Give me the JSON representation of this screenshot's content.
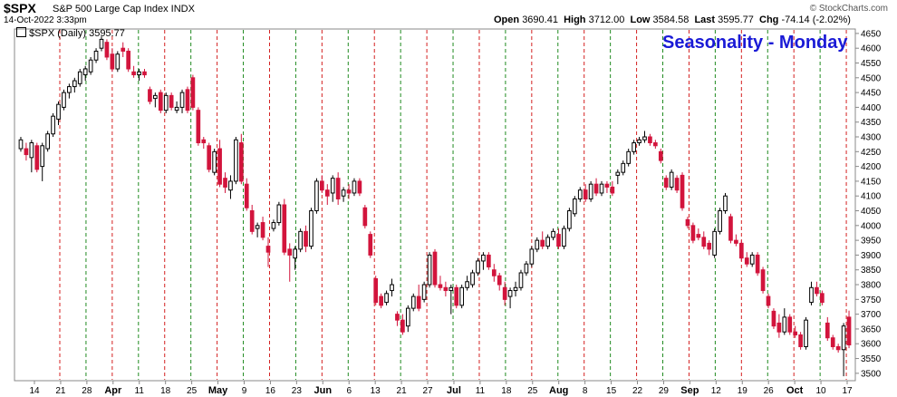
{
  "header": {
    "symbol": "$SPX",
    "description": "S&P 500 Large Cap Index  INDX",
    "timestamp": "14-Oct-2022 3:33pm",
    "credit": "© StockCharts.com",
    "open_label": "Open",
    "open": "3690.41",
    "high_label": "High",
    "high": "3712.00",
    "low_label": "Low",
    "low": "3584.58",
    "last_label": "Last",
    "last": "3595.77",
    "chg_label": "Chg",
    "chg": "-74.14 (-2.02%)",
    "legend": "$SPX (Daily) 3595.77"
  },
  "colors": {
    "up": "#000000",
    "down": "#d2143c",
    "monday_line": "#d42020",
    "other_line": "#1f8a1f",
    "title": "#1a1ad6"
  },
  "chart_data": {
    "type": "candlestick",
    "title": "Seasonality - Monday",
    "ylim": [
      3475,
      4665
    ],
    "y_ticks": [
      3500,
      3550,
      3600,
      3650,
      3700,
      3750,
      3800,
      3850,
      3900,
      3950,
      4000,
      4050,
      4100,
      4150,
      4200,
      4250,
      4300,
      4350,
      4400,
      4450,
      4500,
      4550,
      4600,
      4650
    ],
    "x_tick_labels": [
      "14",
      "21",
      "28",
      "Apr",
      "11",
      "18",
      "25",
      "May",
      "9",
      "16",
      "23",
      "Jun",
      "6",
      "13",
      "21",
      "27",
      "Jul",
      "11",
      "18",
      "25",
      "Aug",
      "8",
      "15",
      "22",
      "29",
      "Sep",
      "12",
      "19",
      "26",
      "Oct",
      "10",
      "17"
    ],
    "grid": "vertical dashed lines on week starts, red on Mondays, green otherwise",
    "candles": [
      {
        "o": 4260,
        "h": 4300,
        "l": 4250,
        "c": 4290
      },
      {
        "o": 4260,
        "h": 4280,
        "l": 4220,
        "c": 4240
      },
      {
        "o": 4230,
        "h": 4290,
        "l": 4180,
        "c": 4280
      },
      {
        "o": 4270,
        "h": 4280,
        "l": 4180,
        "c": 4190
      },
      {
        "o": 4200,
        "h": 4280,
        "l": 4150,
        "c": 4270
      },
      {
        "o": 4260,
        "h": 4320,
        "l": 4250,
        "c": 4310
      },
      {
        "o": 4310,
        "h": 4380,
        "l": 4300,
        "c": 4370
      },
      {
        "o": 4360,
        "h": 4420,
        "l": 4340,
        "c": 4410
      },
      {
        "o": 4400,
        "h": 4460,
        "l": 4390,
        "c": 4450
      },
      {
        "o": 4450,
        "h": 4480,
        "l": 4430,
        "c": 4470
      },
      {
        "o": 4470,
        "h": 4500,
        "l": 4450,
        "c": 4490
      },
      {
        "o": 4480,
        "h": 4530,
        "l": 4470,
        "c": 4520
      },
      {
        "o": 4510,
        "h": 4540,
        "l": 4490,
        "c": 4530
      },
      {
        "o": 4520,
        "h": 4570,
        "l": 4510,
        "c": 4560
      },
      {
        "o": 4560,
        "h": 4600,
        "l": 4550,
        "c": 4590
      },
      {
        "o": 4600,
        "h": 4640,
        "l": 4590,
        "c": 4630
      },
      {
        "o": 4620,
        "h": 4630,
        "l": 4560,
        "c": 4570
      },
      {
        "o": 4580,
        "h": 4600,
        "l": 4520,
        "c": 4530
      },
      {
        "o": 4530,
        "h": 4590,
        "l": 4520,
        "c": 4580
      },
      {
        "o": 4600,
        "h": 4620,
        "l": 4570,
        "c": 4590
      },
      {
        "o": 4590,
        "h": 4600,
        "l": 4520,
        "c": 4530
      },
      {
        "o": 4520,
        "h": 4540,
        "l": 4500,
        "c": 4510
      },
      {
        "o": 4510,
        "h": 4530,
        "l": 4490,
        "c": 4520
      },
      {
        "o": 4520,
        "h": 4530,
        "l": 4500,
        "c": 4510
      },
      {
        "o": 4460,
        "h": 4470,
        "l": 4410,
        "c": 4420
      },
      {
        "o": 4430,
        "h": 4450,
        "l": 4400,
        "c": 4440
      },
      {
        "o": 4450,
        "h": 4460,
        "l": 4380,
        "c": 4390
      },
      {
        "o": 4390,
        "h": 4450,
        "l": 4380,
        "c": 4440
      },
      {
        "o": 4440,
        "h": 4450,
        "l": 4390,
        "c": 4400
      },
      {
        "o": 4390,
        "h": 4420,
        "l": 4380,
        "c": 4400
      },
      {
        "o": 4400,
        "h": 4460,
        "l": 4380,
        "c": 4450
      },
      {
        "o": 4460,
        "h": 4470,
        "l": 4380,
        "c": 4390
      },
      {
        "o": 4500,
        "h": 4510,
        "l": 4390,
        "c": 4400
      },
      {
        "o": 4390,
        "h": 4400,
        "l": 4270,
        "c": 4280
      },
      {
        "o": 4290,
        "h": 4300,
        "l": 4260,
        "c": 4280
      },
      {
        "o": 4270,
        "h": 4280,
        "l": 4180,
        "c": 4190
      },
      {
        "o": 4180,
        "h": 4260,
        "l": 4170,
        "c": 4250
      },
      {
        "o": 4260,
        "h": 4290,
        "l": 4130,
        "c": 4140
      },
      {
        "o": 4160,
        "h": 4180,
        "l": 4110,
        "c": 4130
      },
      {
        "o": 4120,
        "h": 4170,
        "l": 4090,
        "c": 4150
      },
      {
        "o": 4150,
        "h": 4300,
        "l": 4140,
        "c": 4290
      },
      {
        "o": 4280,
        "h": 4310,
        "l": 4140,
        "c": 4150
      },
      {
        "o": 4140,
        "h": 4160,
        "l": 4050,
        "c": 4060
      },
      {
        "o": 4050,
        "h": 4070,
        "l": 3970,
        "c": 3980
      },
      {
        "o": 3990,
        "h": 4010,
        "l": 3960,
        "c": 4000
      },
      {
        "o": 4010,
        "h": 4030,
        "l": 3950,
        "c": 3960
      },
      {
        "o": 3930,
        "h": 3960,
        "l": 3860,
        "c": 3910
      },
      {
        "o": 3990,
        "h": 4020,
        "l": 3980,
        "c": 4010
      },
      {
        "o": 4010,
        "h": 4080,
        "l": 4000,
        "c": 4070
      },
      {
        "o": 4070,
        "h": 4090,
        "l": 3900,
        "c": 3910
      },
      {
        "o": 3920,
        "h": 3940,
        "l": 3810,
        "c": 3900
      },
      {
        "o": 3890,
        "h": 3930,
        "l": 3850,
        "c": 3920
      },
      {
        "o": 3920,
        "h": 3990,
        "l": 3910,
        "c": 3980
      },
      {
        "o": 3980,
        "h": 4000,
        "l": 3910,
        "c": 3930
      },
      {
        "o": 3930,
        "h": 4060,
        "l": 3920,
        "c": 4050
      },
      {
        "o": 4050,
        "h": 4160,
        "l": 4040,
        "c": 4150
      },
      {
        "o": 4150,
        "h": 4170,
        "l": 4110,
        "c": 4120
      },
      {
        "o": 4120,
        "h": 4140,
        "l": 4070,
        "c": 4100
      },
      {
        "o": 4110,
        "h": 4170,
        "l": 4080,
        "c": 4160
      },
      {
        "o": 4160,
        "h": 4180,
        "l": 4070,
        "c": 4090
      },
      {
        "o": 4100,
        "h": 4130,
        "l": 4080,
        "c": 4120
      },
      {
        "o": 4120,
        "h": 4140,
        "l": 4090,
        "c": 4110
      },
      {
        "o": 4110,
        "h": 4160,
        "l": 4100,
        "c": 4150
      },
      {
        "o": 4150,
        "h": 4160,
        "l": 4100,
        "c": 4110
      },
      {
        "o": 4060,
        "h": 4070,
        "l": 3990,
        "c": 4000
      },
      {
        "o": 3970,
        "h": 3980,
        "l": 3890,
        "c": 3900
      },
      {
        "o": 3820,
        "h": 3830,
        "l": 3730,
        "c": 3740
      },
      {
        "o": 3760,
        "h": 3770,
        "l": 3720,
        "c": 3730
      },
      {
        "o": 3740,
        "h": 3780,
        "l": 3730,
        "c": 3770
      },
      {
        "o": 3780,
        "h": 3820,
        "l": 3760,
        "c": 3800
      },
      {
        "o": 3700,
        "h": 3710,
        "l": 3660,
        "c": 3680
      },
      {
        "o": 3680,
        "h": 3700,
        "l": 3630,
        "c": 3640
      },
      {
        "o": 3660,
        "h": 3730,
        "l": 3640,
        "c": 3720
      },
      {
        "o": 3720,
        "h": 3770,
        "l": 3710,
        "c": 3760
      },
      {
        "o": 3760,
        "h": 3800,
        "l": 3710,
        "c": 3720
      },
      {
        "o": 3750,
        "h": 3810,
        "l": 3740,
        "c": 3800
      },
      {
        "o": 3800,
        "h": 3910,
        "l": 3790,
        "c": 3900
      },
      {
        "o": 3910,
        "h": 3920,
        "l": 3790,
        "c": 3800
      },
      {
        "o": 3800,
        "h": 3830,
        "l": 3780,
        "c": 3790
      },
      {
        "o": 3790,
        "h": 3810,
        "l": 3760,
        "c": 3780
      },
      {
        "o": 3780,
        "h": 3800,
        "l": 3700,
        "c": 3790
      },
      {
        "o": 3790,
        "h": 3800,
        "l": 3720,
        "c": 3730
      },
      {
        "o": 3730,
        "h": 3800,
        "l": 3720,
        "c": 3790
      },
      {
        "o": 3790,
        "h": 3830,
        "l": 3780,
        "c": 3810
      },
      {
        "o": 3800,
        "h": 3850,
        "l": 3790,
        "c": 3840
      },
      {
        "o": 3840,
        "h": 3890,
        "l": 3830,
        "c": 3880
      },
      {
        "o": 3880,
        "h": 3910,
        "l": 3850,
        "c": 3900
      },
      {
        "o": 3900,
        "h": 3910,
        "l": 3850,
        "c": 3860
      },
      {
        "o": 3850,
        "h": 3870,
        "l": 3810,
        "c": 3830
      },
      {
        "o": 3830,
        "h": 3840,
        "l": 3780,
        "c": 3800
      },
      {
        "o": 3790,
        "h": 3810,
        "l": 3730,
        "c": 3750
      },
      {
        "o": 3760,
        "h": 3790,
        "l": 3720,
        "c": 3780
      },
      {
        "o": 3780,
        "h": 3810,
        "l": 3760,
        "c": 3790
      },
      {
        "o": 3790,
        "h": 3850,
        "l": 3780,
        "c": 3840
      },
      {
        "o": 3840,
        "h": 3880,
        "l": 3830,
        "c": 3870
      },
      {
        "o": 3870,
        "h": 3930,
        "l": 3860,
        "c": 3920
      },
      {
        "o": 3920,
        "h": 3960,
        "l": 3910,
        "c": 3950
      },
      {
        "o": 3950,
        "h": 3980,
        "l": 3920,
        "c": 3930
      },
      {
        "o": 3930,
        "h": 3970,
        "l": 3920,
        "c": 3960
      },
      {
        "o": 3960,
        "h": 3990,
        "l": 3950,
        "c": 3980
      },
      {
        "o": 3970,
        "h": 3990,
        "l": 3920,
        "c": 3930
      },
      {
        "o": 3930,
        "h": 4000,
        "l": 3920,
        "c": 3990
      },
      {
        "o": 3990,
        "h": 4060,
        "l": 3980,
        "c": 4050
      },
      {
        "o": 4040,
        "h": 4100,
        "l": 4030,
        "c": 4090
      },
      {
        "o": 4090,
        "h": 4130,
        "l": 4080,
        "c": 4120
      },
      {
        "o": 4120,
        "h": 4140,
        "l": 4080,
        "c": 4090
      },
      {
        "o": 4090,
        "h": 4150,
        "l": 4080,
        "c": 4140
      },
      {
        "o": 4140,
        "h": 4160,
        "l": 4100,
        "c": 4110
      },
      {
        "o": 4110,
        "h": 4150,
        "l": 4100,
        "c": 4140
      },
      {
        "o": 4140,
        "h": 4150,
        "l": 4110,
        "c": 4130
      },
      {
        "o": 4130,
        "h": 4150,
        "l": 4100,
        "c": 4110
      },
      {
        "o": 4170,
        "h": 4190,
        "l": 4140,
        "c": 4180
      },
      {
        "o": 4180,
        "h": 4220,
        "l": 4170,
        "c": 4210
      },
      {
        "o": 4210,
        "h": 4260,
        "l": 4200,
        "c": 4250
      },
      {
        "o": 4250,
        "h": 4290,
        "l": 4240,
        "c": 4280
      },
      {
        "o": 4280,
        "h": 4300,
        "l": 4270,
        "c": 4290
      },
      {
        "o": 4290,
        "h": 4320,
        "l": 4280,
        "c": 4300
      },
      {
        "o": 4300,
        "h": 4310,
        "l": 4270,
        "c": 4280
      },
      {
        "o": 4280,
        "h": 4290,
        "l": 4260,
        "c": 4270
      },
      {
        "o": 4250,
        "h": 4260,
        "l": 4210,
        "c": 4220
      },
      {
        "o": 4160,
        "h": 4170,
        "l": 4120,
        "c": 4130
      },
      {
        "o": 4130,
        "h": 4190,
        "l": 4120,
        "c": 4180
      },
      {
        "o": 4160,
        "h": 4170,
        "l": 4110,
        "c": 4120
      },
      {
        "o": 4170,
        "h": 4180,
        "l": 4050,
        "c": 4060
      },
      {
        "o": 4020,
        "h": 4030,
        "l": 3990,
        "c": 4000
      },
      {
        "o": 4000,
        "h": 4010,
        "l": 3940,
        "c": 3950
      },
      {
        "o": 3970,
        "h": 3990,
        "l": 3950,
        "c": 3960
      },
      {
        "o": 3960,
        "h": 3980,
        "l": 3920,
        "c": 3930
      },
      {
        "o": 3940,
        "h": 3950,
        "l": 3900,
        "c": 3920
      },
      {
        "o": 3900,
        "h": 3990,
        "l": 3890,
        "c": 3980
      },
      {
        "o": 3980,
        "h": 4060,
        "l": 3970,
        "c": 4050
      },
      {
        "o": 4050,
        "h": 4110,
        "l": 4040,
        "c": 4100
      },
      {
        "o": 4030,
        "h": 4040,
        "l": 3940,
        "c": 3950
      },
      {
        "o": 3950,
        "h": 3970,
        "l": 3930,
        "c": 3940
      },
      {
        "o": 3940,
        "h": 3950,
        "l": 3880,
        "c": 3890
      },
      {
        "o": 3890,
        "h": 3910,
        "l": 3860,
        "c": 3870
      },
      {
        "o": 3870,
        "h": 3910,
        "l": 3860,
        "c": 3900
      },
      {
        "o": 3900,
        "h": 3910,
        "l": 3830,
        "c": 3840
      },
      {
        "o": 3850,
        "h": 3860,
        "l": 3770,
        "c": 3780
      },
      {
        "o": 3760,
        "h": 3770,
        "l": 3720,
        "c": 3730
      },
      {
        "o": 3710,
        "h": 3720,
        "l": 3650,
        "c": 3660
      },
      {
        "o": 3670,
        "h": 3700,
        "l": 3620,
        "c": 3640
      },
      {
        "o": 3640,
        "h": 3720,
        "l": 3630,
        "c": 3690
      },
      {
        "o": 3690,
        "h": 3700,
        "l": 3630,
        "c": 3640
      },
      {
        "o": 3640,
        "h": 3660,
        "l": 3620,
        "c": 3630
      },
      {
        "o": 3630,
        "h": 3640,
        "l": 3580,
        "c": 3590
      },
      {
        "o": 3590,
        "h": 3690,
        "l": 3580,
        "c": 3680
      },
      {
        "o": 3740,
        "h": 3810,
        "l": 3730,
        "c": 3790
      },
      {
        "o": 3790,
        "h": 3810,
        "l": 3760,
        "c": 3770
      },
      {
        "o": 3770,
        "h": 3780,
        "l": 3730,
        "c": 3740
      },
      {
        "o": 3670,
        "h": 3690,
        "l": 3610,
        "c": 3620
      },
      {
        "o": 3620,
        "h": 3630,
        "l": 3580,
        "c": 3590
      },
      {
        "o": 3590,
        "h": 3600,
        "l": 3570,
        "c": 3580
      },
      {
        "o": 3580,
        "h": 3670,
        "l": 3490,
        "c": 3660
      },
      {
        "o": 3690,
        "h": 3712,
        "l": 3585,
        "c": 3596
      }
    ]
  }
}
